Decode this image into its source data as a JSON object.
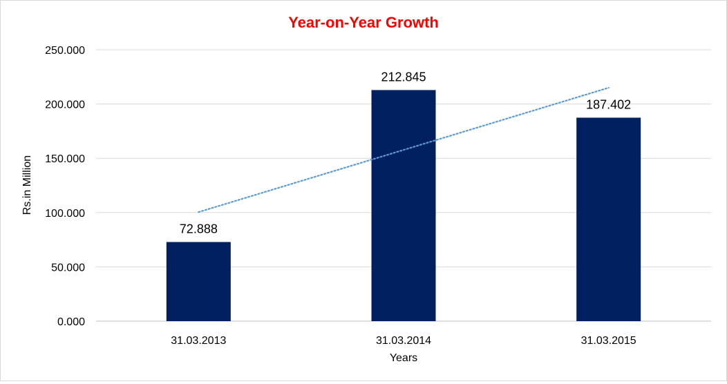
{
  "chart_data": {
    "type": "bar",
    "title": "Year-on-Year Growth",
    "title_color": "#ff0000",
    "xlabel": "Years",
    "ylabel": "Rs.in Million",
    "categories": [
      "31.03.2013",
      "31.03.2014",
      "31.03.2015"
    ],
    "values": [
      72.888,
      212.845,
      187.402
    ],
    "data_labels": [
      "72.888",
      "212.845",
      "187.402"
    ],
    "ylim": [
      0,
      250
    ],
    "yticks": [
      0,
      50,
      100,
      150,
      200,
      250
    ],
    "ytick_labels": [
      "0.000",
      "50.000",
      "100.000",
      "150.000",
      "200.000",
      "250.000"
    ],
    "bar_color": "#002060",
    "trendline": {
      "type": "linear",
      "style": "dotted",
      "color": "#5b9bd5"
    },
    "grid": true,
    "legend": "none"
  }
}
